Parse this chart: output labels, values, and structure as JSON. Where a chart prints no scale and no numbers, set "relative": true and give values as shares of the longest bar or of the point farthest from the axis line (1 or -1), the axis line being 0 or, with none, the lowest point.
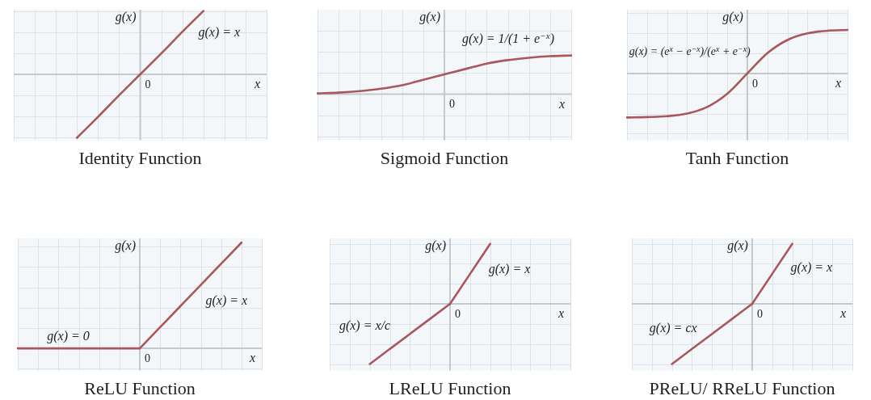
{
  "chart_data": [
    {
      "type": "line",
      "title": "Identity Function",
      "xlabel": "x",
      "ylabel": "g(x)",
      "annotations": [
        "0"
      ],
      "relative": true,
      "grid": true,
      "marker": "none",
      "categories": [
        null,
        null,
        null,
        null,
        null,
        null,
        null,
        null,
        null,
        null,
        null,
        null,
        null
      ],
      "series": [
        {
          "name": "g(x) = x",
          "color": "#a9575d",
          "values": [
            null,
            null,
            null,
            -1,
            -0.67,
            -0.33,
            0,
            0.33,
            0.67,
            1,
            null,
            null,
            null
          ]
        }
      ]
    },
    {
      "type": "line",
      "title": "Sigmoid Function",
      "xlabel": "x",
      "ylabel": "g(x)",
      "annotations": [
        "0"
      ],
      "relative": true,
      "grid": true,
      "marker": "none",
      "categories": [
        null,
        null,
        null,
        null,
        null,
        null,
        null,
        null,
        null,
        null,
        null,
        null,
        null
      ],
      "series": [
        {
          "name": "g(x) = 1/(1 + e$^{−x}$)",
          "color": "#a9575d",
          "values": [
            0.02,
            0.04,
            0.08,
            0.14,
            0.23,
            0.37,
            0.51,
            0.65,
            0.79,
            0.88,
            0.94,
            0.98,
            1
          ]
        }
      ]
    },
    {
      "type": "line",
      "title": "Tanh Function",
      "xlabel": "x",
      "ylabel": "g(x)",
      "annotations": [
        "0"
      ],
      "relative": true,
      "grid": true,
      "marker": "none",
      "categories": [
        null,
        null,
        null,
        null,
        null,
        null,
        null,
        null,
        null,
        null,
        null,
        null
      ],
      "series": [
        {
          "name": "g(x) = (e$^{x}$ − e$^{−x}$)/(e$^{x}$ + e$^{−x}$)",
          "color": "#a9575d",
          "values": [
            -1,
            -0.99,
            -0.97,
            -0.91,
            -0.76,
            -0.46,
            0,
            0.46,
            0.76,
            0.91,
            0.97,
            0.99
          ]
        }
      ]
    },
    {
      "type": "line",
      "title": "ReLU Function",
      "xlabel": "x",
      "ylabel": "g(x)",
      "annotations": [
        "0"
      ],
      "relative": true,
      "grid": true,
      "marker": "none",
      "categories": [
        null,
        null,
        null,
        null,
        null,
        null,
        null,
        null,
        null,
        null,
        null,
        null,
        null
      ],
      "series": [
        {
          "name": "g(x) = 0",
          "color": "#a9575d",
          "values": [
            0,
            0,
            0,
            0,
            0,
            0,
            0,
            null,
            null,
            null,
            null,
            null,
            null
          ]
        },
        {
          "name": "g(x) = x",
          "color": "#a9575d",
          "values": [
            null,
            null,
            null,
            null,
            null,
            null,
            0,
            0.2,
            0.4,
            0.6,
            0.8,
            1,
            null
          ]
        }
      ]
    },
    {
      "type": "line",
      "title": "LReLU Function",
      "xlabel": "x",
      "ylabel": "g(x)",
      "annotations": [
        "0"
      ],
      "relative": true,
      "grid": true,
      "marker": "none",
      "categories": [
        null,
        null,
        null,
        null,
        null,
        null,
        null,
        null,
        null,
        null,
        null,
        null,
        null
      ],
      "series": [
        {
          "name": "g(x) = x/c",
          "color": "#a9575d",
          "values": [
            null,
            null,
            -1,
            -0.75,
            -0.5,
            -0.25,
            0,
            null,
            null,
            null,
            null,
            null,
            null
          ]
        },
        {
          "name": "g(x) = x",
          "color": "#a9575d",
          "values": [
            null,
            null,
            null,
            null,
            null,
            null,
            0,
            0.5,
            1,
            null,
            null,
            null,
            null
          ]
        }
      ]
    },
    {
      "type": "line",
      "title": "PReLU/ RReLU Function",
      "xlabel": "x",
      "ylabel": "g(x)",
      "annotations": [
        "0"
      ],
      "relative": true,
      "grid": true,
      "marker": "none",
      "categories": [
        null,
        null,
        null,
        null,
        null,
        null,
        null,
        null,
        null,
        null,
        null,
        null
      ],
      "series": [
        {
          "name": "g(x) = cx",
          "color": "#a9575d",
          "values": [
            null,
            null,
            -1,
            -0.75,
            -0.5,
            -0.25,
            0,
            null,
            null,
            null,
            null,
            null
          ]
        },
        {
          "name": "g(x) = x",
          "color": "#a9575d",
          "values": [
            null,
            null,
            null,
            null,
            null,
            null,
            0,
            0.5,
            1,
            null,
            null,
            null
          ]
        }
      ]
    }
  ]
}
